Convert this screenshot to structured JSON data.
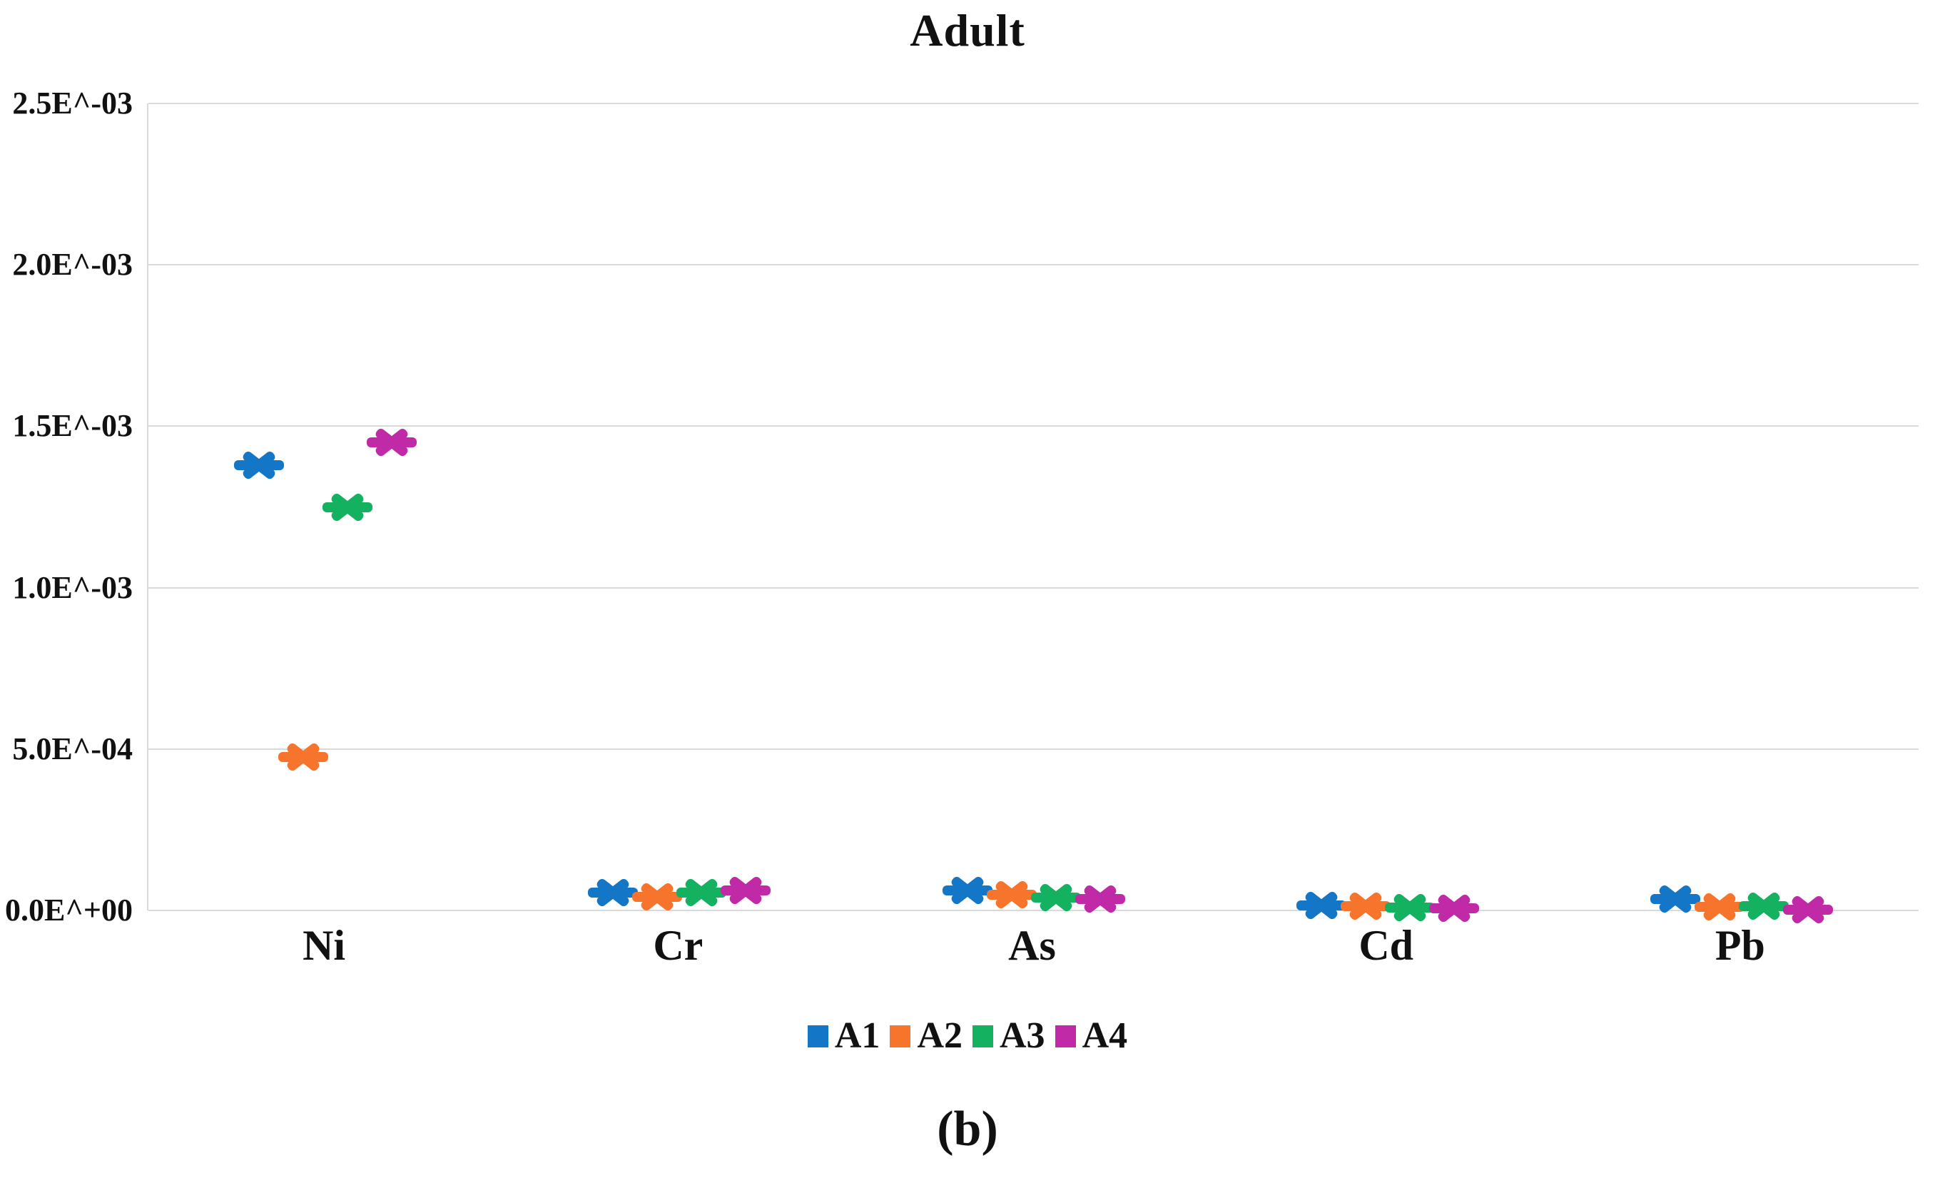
{
  "title": "Adult",
  "caption": "(b)",
  "y_axis": {
    "tick_labels": [
      "2.5E^-03",
      "2.0E^-03",
      "1.5E^-03",
      "1.0E^-03",
      "5.0E^-04",
      "0.0E^+00"
    ],
    "min": 0,
    "max": 0.0025
  },
  "x_axis": {
    "categories": [
      "Ni",
      "Cr",
      "As",
      "Cd",
      "Pb"
    ]
  },
  "legend": {
    "position": "bottom-center",
    "items": [
      {
        "label": "A1",
        "color": "#1476C6"
      },
      {
        "label": "A2",
        "color": "#F6742C"
      },
      {
        "label": "A3",
        "color": "#13B160"
      },
      {
        "label": "A4",
        "color": "#C02AA6"
      }
    ]
  },
  "style": {
    "gridline_color": "#D9D9D9",
    "text_color": "#111111",
    "marker_style": "x-with-horizontal-dash"
  },
  "chart_data": {
    "type": "scatter",
    "title": "Adult",
    "xlabel": "",
    "ylabel": "",
    "ylim": [
      0,
      0.0025
    ],
    "grid": "horizontal",
    "legend_position": "bottom",
    "categories": [
      "Ni",
      "Cr",
      "As",
      "Cd",
      "Pb"
    ],
    "series": [
      {
        "name": "A1",
        "color": "#1476C6",
        "values": [
          0.00138,
          5.5e-05,
          6.2e-05,
          1.5e-05,
          3.5e-05
        ]
      },
      {
        "name": "A2",
        "color": "#F6742C",
        "values": [
          0.000475,
          4.3e-05,
          4.9e-05,
          1.3e-05,
          1.1e-05
        ]
      },
      {
        "name": "A3",
        "color": "#13B160",
        "values": [
          0.00125,
          5.5e-05,
          4e-05,
          9e-06,
          1.3e-05
        ]
      },
      {
        "name": "A4",
        "color": "#C02AA6",
        "values": [
          0.00145,
          6.2e-05,
          3.5e-05,
          7e-06,
          2e-06
        ]
      }
    ]
  }
}
